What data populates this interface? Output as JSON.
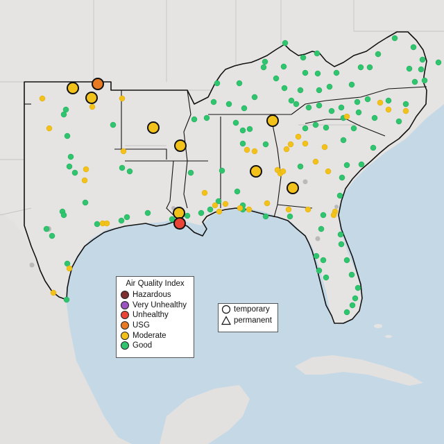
{
  "legend": {
    "title": "Air Quality Index",
    "categories": [
      {
        "label": "Hazardous",
        "color": "#7e2f2f"
      },
      {
        "label": "Very Unhealthy",
        "color": "#9a55c3"
      },
      {
        "label": "Unhealthy",
        "color": "#ea4436"
      },
      {
        "label": "USG",
        "color": "#e87a24"
      },
      {
        "label": "Moderate",
        "color": "#f2c21b"
      },
      {
        "label": "Good",
        "color": "#2fc46d"
      }
    ]
  },
  "shape_legend": {
    "temporary_label": "temporary",
    "permanent_label": "permanent",
    "temporary_icon": "circle-outline-icon",
    "permanent_icon": "triangle-outline-icon"
  },
  "colors": {
    "water": "#c5d8e6",
    "land": "#e6e4e2",
    "border": "#111111",
    "inactive": "#b9b9b9"
  },
  "monitors": {
    "large_temporary": [
      {
        "aqi": "USG"
      },
      {
        "aqi": "Moderate"
      },
      {
        "aqi": "Moderate"
      },
      {
        "aqi": "Moderate"
      },
      {
        "aqi": "Moderate"
      },
      {
        "aqi": "Moderate"
      },
      {
        "aqi": "Moderate"
      },
      {
        "aqi": "Moderate"
      },
      {
        "aqi": "Moderate"
      },
      {
        "aqi": "Unhealthy"
      }
    ]
  }
}
